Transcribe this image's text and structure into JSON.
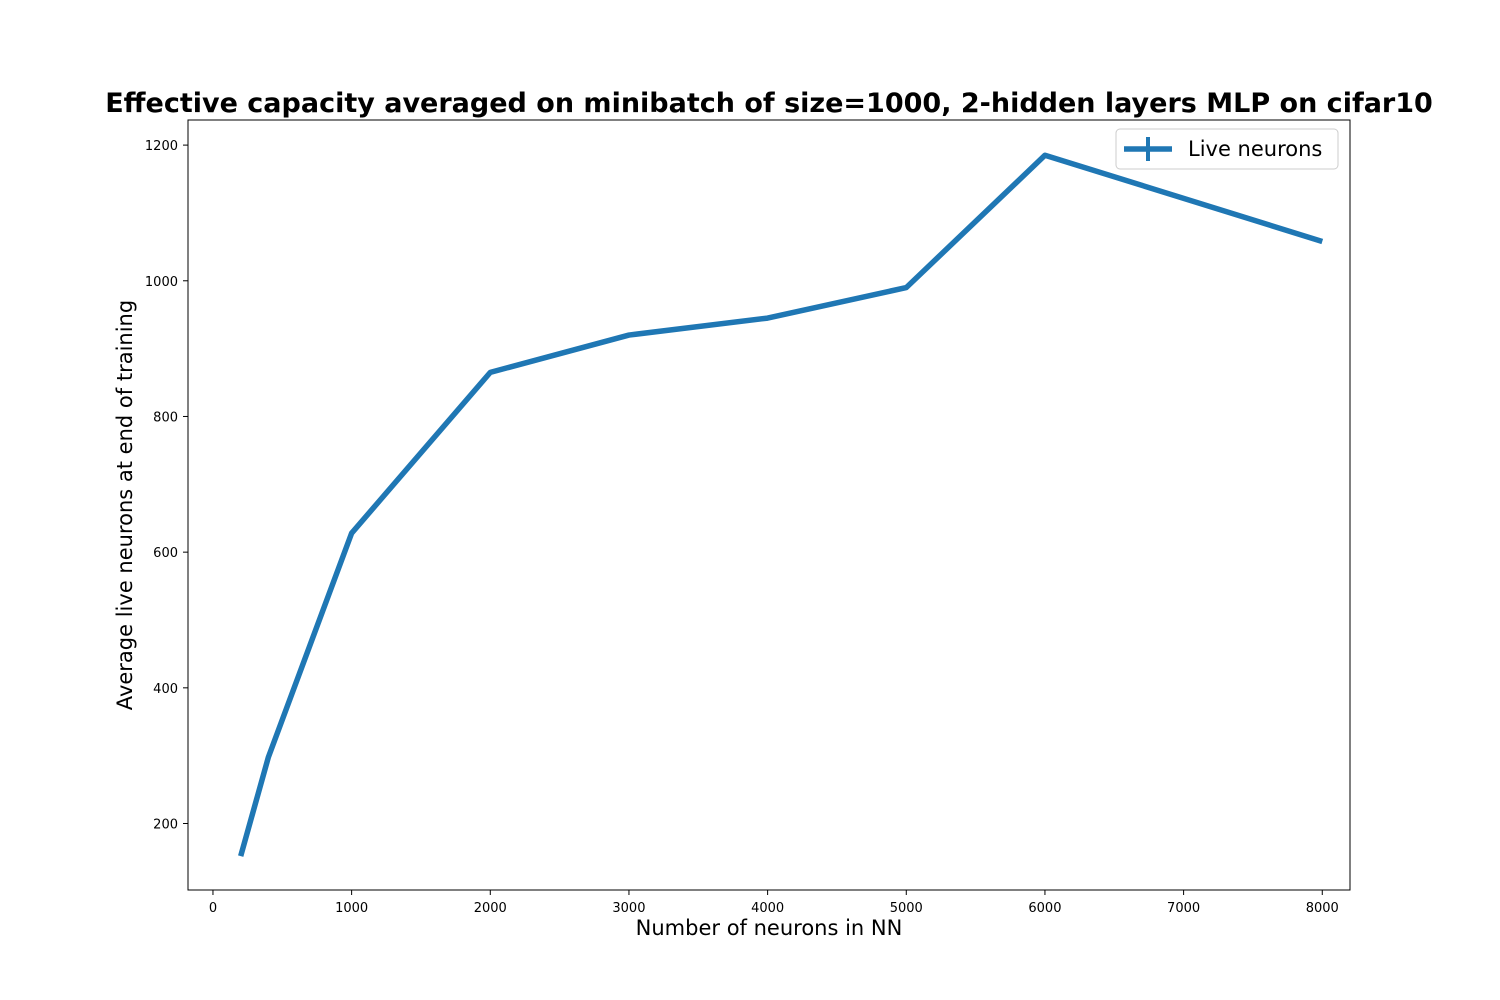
{
  "chart_data": {
    "type": "line",
    "title": "Effective capacity averaged on minibatch of size=1000, 2-hidden layers MLP on cifar10",
    "xlabel": "Number of neurons in NN",
    "ylabel": "Average live neurons at end of training",
    "xlim": [
      -180,
      8200
    ],
    "ylim": [
      102,
      1237
    ],
    "xticks": [
      0,
      1000,
      2000,
      3000,
      4000,
      5000,
      6000,
      7000,
      8000
    ],
    "yticks": [
      200,
      400,
      600,
      800,
      1000,
      1200
    ],
    "grid": false,
    "legend_position": "top-right",
    "series": [
      {
        "name": "Live neurons",
        "color": "#1f77b4",
        "x": [
          200,
          400,
          1000,
          2000,
          3000,
          4000,
          5000,
          6000,
          8000
        ],
        "y": [
          152,
          298,
          628,
          865,
          920,
          945,
          990,
          1185,
          1058
        ]
      }
    ]
  }
}
